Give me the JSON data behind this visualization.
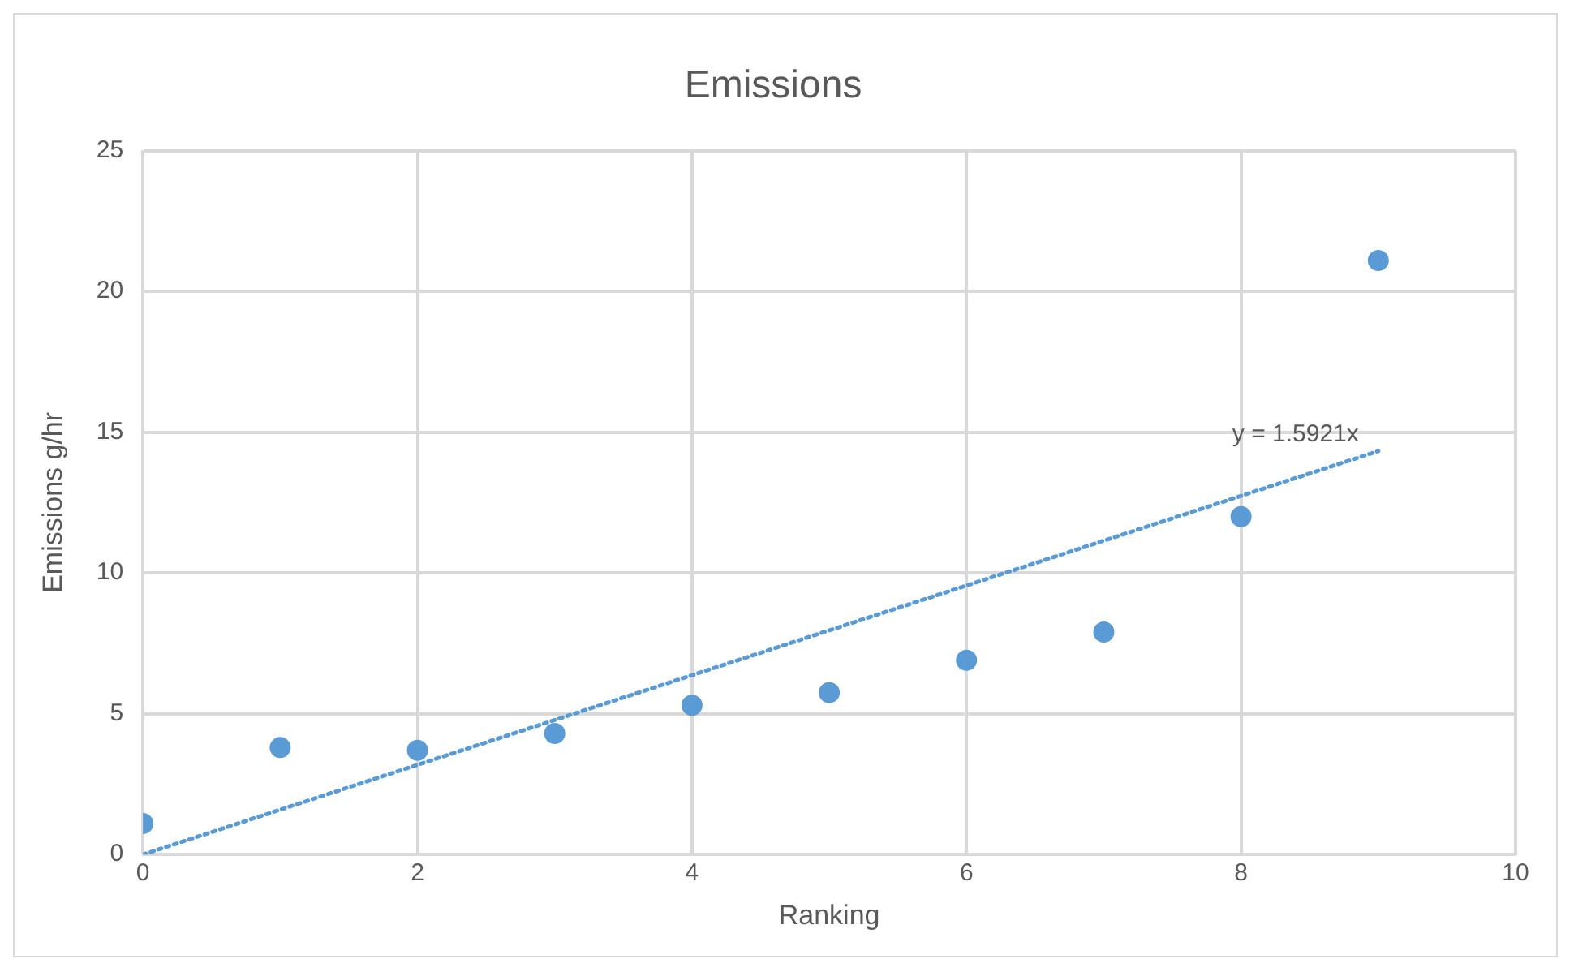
{
  "chart_data": {
    "type": "scatter",
    "title": "Emissions",
    "xlabel": "Ranking",
    "ylabel": "Emissions g/hr",
    "x": [
      0,
      1,
      2,
      3,
      4,
      5,
      6,
      7,
      8,
      9
    ],
    "series": [
      {
        "type": "scatter",
        "color": "#5b9bd5",
        "marker": "circle",
        "values": [
          1.1,
          3.8,
          3.7,
          4.3,
          5.3,
          5.75,
          6.9,
          7.9,
          12.0,
          21.1
        ]
      },
      {
        "type": "line",
        "color": "#5b9bd5",
        "marker": "none",
        "line_style": "dotted",
        "x": [
          0,
          9
        ],
        "values": [
          0,
          14.33
        ]
      }
    ],
    "annotations": [
      "y = 1.5921x"
    ],
    "xlim": [
      0,
      10
    ],
    "xticks": [
      0,
      2,
      4,
      6,
      8,
      10
    ],
    "ylim": [
      0,
      25
    ],
    "yticks": [
      0,
      5,
      10,
      15,
      20,
      25
    ],
    "grid": true,
    "legend": false
  }
}
